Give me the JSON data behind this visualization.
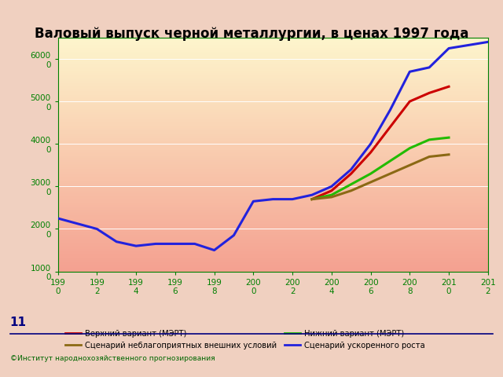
{
  "title": "Валовый выпуск черной металлургии, в ценах 1997 года",
  "blue_data": {
    "x": [
      1990,
      1992,
      1993,
      1994,
      1995,
      1996,
      1997,
      1998,
      1999,
      2000,
      2001,
      2002,
      2003,
      2004,
      2005,
      2006,
      2007,
      2008,
      2009,
      2010,
      2012
    ],
    "y": [
      22500,
      20000,
      17000,
      16000,
      16500,
      16500,
      16500,
      15000,
      18500,
      26500,
      27000,
      27000,
      28000,
      30000,
      34000,
      40000,
      48000,
      57000,
      58000,
      62500,
      64000
    ]
  },
  "red_data": {
    "x": [
      2003,
      2004,
      2005,
      2006,
      2007,
      2008,
      2009,
      2010
    ],
    "y": [
      27000,
      29000,
      33000,
      38000,
      44000,
      50000,
      52000,
      53500
    ]
  },
  "green_data": {
    "x": [
      2003,
      2004,
      2005,
      2006,
      2007,
      2008,
      2009,
      2010
    ],
    "y": [
      27000,
      28000,
      30500,
      33000,
      36000,
      39000,
      41000,
      41500
    ]
  },
  "brown_data": {
    "x": [
      2003,
      2004,
      2005,
      2006,
      2007,
      2008,
      2009,
      2010
    ],
    "y": [
      27000,
      27500,
      29000,
      31000,
      33000,
      35000,
      37000,
      37500
    ]
  },
  "xlim": [
    1990,
    2012
  ],
  "ylim": [
    10000,
    65000
  ],
  "yticks": [
    10000,
    20000,
    30000,
    40000,
    50000,
    60000
  ],
  "xticks": [
    1990,
    1992,
    1994,
    1996,
    1998,
    2000,
    2002,
    2004,
    2006,
    2008,
    2010,
    2012
  ],
  "line_colors": {
    "blue": "#2222dd",
    "red": "#cc0000",
    "green": "#22bb00",
    "brown": "#8B6914"
  },
  "line_width": 2.2,
  "bg_top_color": "#fdf5cc",
  "bg_bottom_color": "#f4a090",
  "fig_bg_color": "#f0d0c0",
  "grid_color": "#cccccc",
  "tick_color": "#008000",
  "legend": {
    "верхний": "Верхний вариант (МЭРТ)",
    "нижний": "Нижний вариант (МЭРТ)",
    "неблаго": "Сценарий неблагоприятных внешних условий",
    "ускор": "Сценарий ускоренного роста"
  },
  "footer": "©Институт народнохозяйственного прогнозирования",
  "slide_number": "11",
  "divider_color": "#000080"
}
